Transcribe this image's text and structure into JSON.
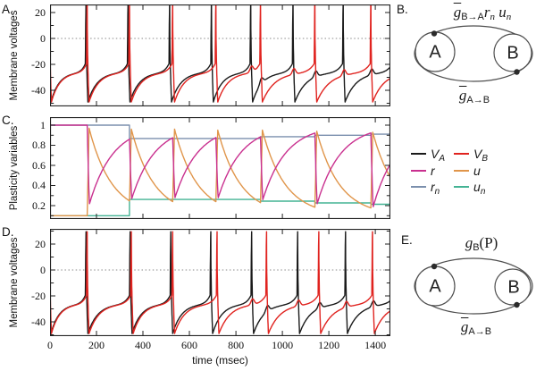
{
  "panels": {
    "a": "A.",
    "b": "B.",
    "c": "C.",
    "d": "D.",
    "e": "E."
  },
  "legend": {
    "items": [
      {
        "main": "V",
        "sub": "A",
        "color": "#1a1a1a"
      },
      {
        "main": "r",
        "sub": "",
        "color": "#c9308f"
      },
      {
        "main": "r",
        "sub": "n",
        "color": "#7b8fad"
      },
      {
        "main": "V",
        "sub": "B",
        "color": "#e0231f"
      },
      {
        "main": "u",
        "sub": "",
        "color": "#e0954a"
      },
      {
        "main": "u",
        "sub": "n",
        "color": "#44b394"
      }
    ]
  },
  "diagram_b": {
    "label": "B.",
    "node_a": "A",
    "node_b": "B",
    "top": {
      "g": "g",
      "g_sub": "B→A",
      "r": "r",
      "r_sub": "n",
      "u": "u",
      "u_sub": "n"
    },
    "bottom": {
      "g": "g",
      "g_sub": "A→B"
    }
  },
  "diagram_e": {
    "label": "E.",
    "node_a": "A",
    "node_b": "B",
    "top": {
      "g": "g",
      "g_sub": "B",
      "paren": "(P)"
    },
    "bottom": {
      "g": "g",
      "g_sub": "A→B"
    }
  },
  "chart_data": [
    {
      "panel": "A",
      "type": "line",
      "ylabel": "Membrane voltages",
      "xlim": [
        0,
        1465
      ],
      "ylim": [
        -52.4,
        26.2
      ],
      "xticks": [
        0,
        200,
        400,
        600,
        800,
        1000,
        1200,
        1400
      ],
      "yticks": [
        20,
        0,
        -20,
        -40
      ],
      "ytick_labels": [
        "20",
        "0",
        "-20",
        "-40"
      ],
      "y_minor_step": 10,
      "zero_line": true,
      "waveform": {
        "rest": -49,
        "peak": 29.5,
        "threshold": -19.5,
        "spike_rise_ms": 3,
        "spike_fall_ms": 8,
        "bump_mv": 4.5
      },
      "series": [
        {
          "name": "V_A",
          "kind": "membrane",
          "color": "#1a1a1a",
          "spike_times": [
            155,
            336,
            515,
            695,
            864,
            1046,
            1262
          ],
          "virtual_prev_spike": -4
        },
        {
          "name": "V_B",
          "kind": "membrane",
          "color": "#e0231f",
          "spike_times": [
            160,
            342,
            528,
            714,
            906,
            1140,
            1381
          ],
          "virtual_prev_spike": -2
        }
      ]
    },
    {
      "panel": "C",
      "type": "line",
      "ylabel": "Plasticity variables",
      "xlim": [
        0,
        1465
      ],
      "ylim": [
        0.067,
        1.08
      ],
      "xticks": [
        0,
        200,
        400,
        600,
        800,
        1000,
        1200,
        1400
      ],
      "yticks": [
        1,
        0.8,
        0.6,
        0.4,
        0.2
      ],
      "ytick_labels": [
        "1",
        "0.8",
        "0.6",
        "0.4",
        "0.2"
      ],
      "y_minor_step": 0.1,
      "zero_line": false,
      "series": [
        {
          "name": "r_n",
          "kind": "step",
          "color": "#7b8fad",
          "steps": [
            [
              0,
              1
            ],
            [
              342,
              0.868
            ],
            [
              906,
              0.885
            ],
            [
              1140,
              0.9
            ],
            [
              1381,
              0.91
            ]
          ]
        },
        {
          "name": "u_n",
          "kind": "step",
          "color": "#44b394",
          "steps": [
            [
              0,
              0.1
            ],
            [
              342,
              0.262
            ],
            [
              906,
              0.245
            ],
            [
              1140,
              0.227
            ],
            [
              1381,
              0.214
            ]
          ]
        },
        {
          "name": "u",
          "kind": "facilitation",
          "color": "#e0954a",
          "baseline": 0.1,
          "tau": 98,
          "rise_ms": 8,
          "spike_times": [
            160,
            342,
            528,
            714,
            906,
            1140,
            1381
          ],
          "peaks": [
            0.97,
            0.96,
            0.96,
            0.95,
            0.95,
            0.94,
            0.93
          ]
        },
        {
          "name": "r",
          "kind": "depression",
          "color": "#c9308f",
          "start": 1,
          "tau": 100,
          "drop_ms": 10,
          "spike_times": [
            160,
            342,
            528,
            714,
            906,
            1140,
            1381
          ],
          "minima": [
            0.22,
            0.27,
            0.28,
            0.28,
            0.26,
            0.22,
            0.19
          ]
        }
      ]
    },
    {
      "panel": "D",
      "type": "line",
      "ylabel": "Membrane voltages",
      "xlabel": "time (msec)",
      "xlim": [
        0,
        1465
      ],
      "ylim": [
        -51,
        31.7
      ],
      "xticks": [
        0,
        200,
        400,
        600,
        800,
        1000,
        1200,
        1400
      ],
      "xtick_labels": [
        "0",
        "200",
        "400",
        "600",
        "800",
        "1000",
        "1200",
        "1400"
      ],
      "yticks": [
        20,
        0,
        -20,
        -40
      ],
      "ytick_labels": [
        "20",
        "0",
        "-20",
        "-40"
      ],
      "y_minor_step": 10,
      "zero_line": true,
      "waveform": {
        "rest": -49,
        "peak": 29.5,
        "threshold": -19.5,
        "spike_rise_ms": 3,
        "spike_fall_ms": 8,
        "bump_mv": 4.5
      },
      "series": [
        {
          "name": "V_A",
          "kind": "membrane",
          "color": "#1a1a1a",
          "spike_times": [
            155,
            345,
            520,
            692,
            868,
            1066,
            1272
          ],
          "virtual_prev_spike": -4
        },
        {
          "name": "V_B",
          "kind": "membrane",
          "color": "#e0231f",
          "spike_times": [
            160,
            350,
            528,
            719,
            932,
            1157,
            1388
          ],
          "virtual_prev_spike": -2
        }
      ]
    }
  ]
}
